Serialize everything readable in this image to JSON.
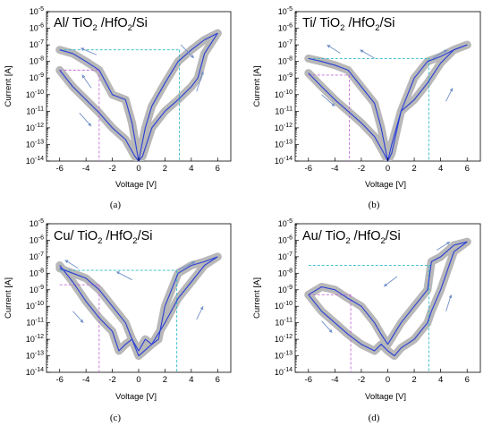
{
  "figure": {
    "title": ""
  },
  "chart_data": [
    {
      "type": "line",
      "panel_label": "(a)",
      "title": "Al/ TiO2 /HfO2/Si",
      "title_parts": [
        [
          "Al/ TiO",
          false
        ],
        [
          "2",
          true
        ],
        [
          " /HfO",
          false
        ],
        [
          "2",
          true
        ],
        [
          "/Si",
          false
        ]
      ],
      "xlabel": "Voltage [V]",
      "ylabel": "Current [A]",
      "xlim": [
        -7,
        7
      ],
      "ylim": [
        1e-14,
        1e-05
      ],
      "yscale": "log",
      "xticks": [
        -6,
        -4,
        -2,
        0,
        2,
        4,
        6
      ],
      "yticks": [
        -14,
        -13,
        -12,
        -11,
        -10,
        -9,
        -8,
        -7,
        -6,
        -5
      ],
      "colors": {
        "band": "#b8b8b8",
        "trace": "#2a3fd6",
        "h_guide": "#2bb8c8",
        "v_guide": "#c36bd8"
      },
      "series": [
        {
          "name": "",
          "x": [
            -6.0,
            -5.0,
            -4.0,
            -3.0,
            -2.0,
            -1.0,
            -0.3,
            0.0,
            0.3,
            1.0,
            2.0,
            3.0,
            4.0,
            4.5,
            5.0,
            6.0
          ],
          "y": [
            3e-09,
            3e-10,
            5e-11,
            8e-12,
            1e-12,
            2e-13,
            2e-14,
            1e-14,
            2e-14,
            1e-12,
            1e-11,
            5e-11,
            3e-10,
            1e-09,
            3e-08,
            5e-07
          ]
        },
        {
          "name": "",
          "x": [
            6.0,
            5.0,
            4.0,
            3.0,
            2.0,
            1.0,
            0.5,
            0.0,
            -0.5,
            -1.0,
            -2.0,
            -3.0,
            -4.0,
            -5.0,
            -6.0
          ],
          "y": [
            5e-07,
            2e-07,
            5e-08,
            1e-08,
            5e-10,
            2e-11,
            1e-12,
            1e-14,
            2e-12,
            5e-11,
            1e-10,
            3e-09,
            1e-08,
            3e-08,
            5e-08
          ]
        }
      ],
      "guides": {
        "h": [
          [
            -6,
            3.2,
            5e-08
          ],
          [
            -6,
            -3.0,
            3e-09
          ]
        ],
        "v": [
          [
            3.1,
            5e-08
          ],
          [
            -3.0,
            3e-09
          ]
        ]
      },
      "arrows": [
        [
          3.2,
          -7.0,
          4.2,
          -7.8
        ],
        [
          -3.2,
          -7.6,
          -4.4,
          -7.2
        ],
        [
          -3.6,
          -9.6,
          -4.3,
          -8.8
        ],
        [
          -4.5,
          -11.1,
          -3.6,
          -11.9
        ],
        [
          4.4,
          -9.8,
          4.9,
          -8.6
        ]
      ]
    },
    {
      "type": "line",
      "panel_label": "(b)",
      "title": "Ti/ TiO2 /HfO2/Si",
      "title_parts": [
        [
          "Ti/ TiO",
          false
        ],
        [
          "2",
          true
        ],
        [
          " /HfO",
          false
        ],
        [
          "2",
          true
        ],
        [
          "/Si",
          false
        ]
      ],
      "xlabel": "Voltage [V]",
      "ylabel": "Current [A]",
      "xlim": [
        -7,
        7
      ],
      "ylim": [
        1e-14,
        1e-05
      ],
      "yscale": "log",
      "xticks": [
        -6,
        -4,
        -2,
        0,
        2,
        4,
        6
      ],
      "yticks": [
        -14,
        -13,
        -12,
        -11,
        -10,
        -9,
        -8,
        -7,
        -6,
        -5
      ],
      "colors": {
        "band": "#b8b8b8",
        "trace": "#2a3fd6",
        "h_guide": "#2bb8c8",
        "v_guide": "#c36bd8"
      },
      "series": [
        {
          "name": "",
          "x": [
            -6.0,
            -5.0,
            -4.0,
            -3.0,
            -2.0,
            -1.0,
            -0.3,
            0.0,
            0.3,
            1.0,
            2.0,
            3.0,
            4.0,
            5.0,
            6.0
          ],
          "y": [
            2e-09,
            3e-10,
            5e-11,
            1e-11,
            2e-12,
            3e-13,
            3e-14,
            1e-14,
            3e-14,
            1e-11,
            5e-11,
            5e-10,
            8e-09,
            5e-08,
            1e-07
          ]
        },
        {
          "name": "",
          "x": [
            6.0,
            5.0,
            4.0,
            3.0,
            2.0,
            1.0,
            0.3,
            0.0,
            -0.5,
            -1.0,
            -2.0,
            -3.0,
            -4.0,
            -5.0,
            -6.0
          ],
          "y": [
            1e-07,
            5e-08,
            2e-08,
            1e-08,
            1e-09,
            1e-11,
            1e-13,
            1e-14,
            1e-12,
            3e-11,
            3e-10,
            3e-09,
            6e-09,
            1e-08,
            1.5e-08
          ]
        }
      ],
      "guides": {
        "h": [
          [
            -6,
            3.2,
            1.5e-08
          ],
          [
            -6,
            -2.9,
            1.5e-09
          ]
        ],
        "v": [
          [
            3.1,
            1.5e-08
          ],
          [
            -2.9,
            1.5e-09
          ]
        ]
      },
      "arrows": [
        [
          -3.6,
          -7.5,
          -4.6,
          -7.0
        ],
        [
          -1.0,
          -7.8,
          -2.1,
          -7.3
        ],
        [
          -5.0,
          -10.0,
          -4.0,
          -10.7
        ],
        [
          3.4,
          -7.8,
          4.5,
          -7.3
        ],
        [
          4.4,
          -10.4,
          4.9,
          -9.6
        ]
      ]
    },
    {
      "type": "line",
      "panel_label": "(c)",
      "title": "Cu/ TiO2 /HfO2/Si",
      "title_parts": [
        [
          "Cu/ TiO",
          false
        ],
        [
          "2",
          true
        ],
        [
          " /HfO",
          false
        ],
        [
          "2",
          true
        ],
        [
          "/Si",
          false
        ]
      ],
      "xlabel": "Voltage [V]",
      "ylabel": "Current [A]",
      "xlim": [
        -7,
        7
      ],
      "ylim": [
        1e-14,
        1e-05
      ],
      "yscale": "log",
      "xticks": [
        -6,
        -4,
        -2,
        0,
        2,
        4,
        6
      ],
      "yticks": [
        -14,
        -13,
        -12,
        -11,
        -10,
        -9,
        -8,
        -7,
        -6,
        -5
      ],
      "colors": {
        "band": "#b8b8b8",
        "trace": "#2a3fd6",
        "h_guide": "#2bb8c8",
        "v_guide": "#c36bd8"
      },
      "series": [
        {
          "name": "",
          "x": [
            -6.0,
            -5.0,
            -4.0,
            -3.0,
            -2.0,
            -1.5,
            -1.0,
            -0.5,
            0.0,
            0.5,
            1.0,
            2.0,
            3.0,
            4.0,
            5.0,
            6.0
          ],
          "y": [
            3e-08,
            3e-09,
            2e-10,
            2e-11,
            3e-12,
            2e-13,
            5e-13,
            1e-12,
            2e-13,
            1e-12,
            5e-13,
            1e-11,
            3e-10,
            3e-09,
            3e-08,
            1e-07
          ]
        },
        {
          "name": "",
          "x": [
            6.0,
            5.0,
            4.0,
            3.0,
            2.0,
            1.5,
            1.0,
            0.0,
            -0.5,
            -1.0,
            -2.0,
            -3.0,
            -4.0,
            -5.0,
            -6.0
          ],
          "y": [
            1e-07,
            5e-08,
            3e-08,
            1e-08,
            1e-10,
            1e-12,
            5e-13,
            1e-13,
            1e-12,
            1e-11,
            1e-10,
            1e-09,
            5e-09,
            1e-08,
            2e-08
          ]
        }
      ],
      "guides": {
        "h": [
          [
            -6,
            2.9,
            1.5e-08
          ],
          [
            -6,
            -3.0,
            2e-09
          ]
        ],
        "v": [
          [
            2.9,
            1.5e-08
          ],
          [
            -3.0,
            2e-09
          ]
        ]
      },
      "arrows": [
        [
          -4.6,
          -7.7,
          -5.6,
          -7.2
        ],
        [
          -0.5,
          -8.4,
          -1.7,
          -7.9
        ],
        [
          -5.0,
          -10.3,
          -4.2,
          -11.0
        ],
        [
          3.0,
          -7.8,
          4.3,
          -7.3
        ],
        [
          4.4,
          -10.8,
          4.9,
          -10.0
        ]
      ]
    },
    {
      "type": "line",
      "panel_label": "(d)",
      "title": "Au/ TiO2 /HfO2/Si",
      "title_parts": [
        [
          "Au/ TiO",
          false
        ],
        [
          "2",
          true
        ],
        [
          " /HfO",
          false
        ],
        [
          "2",
          true
        ],
        [
          "/Si",
          false
        ]
      ],
      "xlabel": "Voltage [V]",
      "ylabel": "Current [A]",
      "xlim": [
        -7,
        7
      ],
      "ylim": [
        1e-14,
        1e-05
      ],
      "yscale": "log",
      "xticks": [
        -6,
        -4,
        -2,
        0,
        2,
        4,
        6
      ],
      "yticks": [
        -14,
        -13,
        -12,
        -11,
        -10,
        -9,
        -8,
        -7,
        -6,
        -5
      ],
      "colors": {
        "band": "#b8b8b8",
        "trace": "#2a3fd6",
        "h_guide": "#2bb8c8",
        "v_guide": "#c36bd8"
      },
      "series": [
        {
          "name": "",
          "x": [
            -6.0,
            -5.0,
            -4.0,
            -3.0,
            -2.0,
            -1.0,
            -0.5,
            0.0,
            0.5,
            1.0,
            2.0,
            3.0,
            3.3,
            4.0,
            5.0,
            6.0
          ],
          "y": [
            5e-10,
            5e-11,
            1e-11,
            2e-12,
            5e-13,
            2e-13,
            5e-13,
            2e-13,
            1e-13,
            3e-13,
            1e-12,
            1e-11,
            5e-11,
            1e-09,
            2e-07,
            8e-07
          ]
        },
        {
          "name": "",
          "x": [
            6.0,
            5.0,
            4.0,
            3.3,
            3.0,
            2.0,
            1.0,
            0.0,
            -0.5,
            -1.0,
            -2.0,
            -3.0,
            -4.0,
            -5.0,
            -6.0
          ],
          "y": [
            8e-07,
            5e-07,
            1e-07,
            5e-08,
            1e-09,
            1e-10,
            1e-11,
            5e-13,
            2e-12,
            1e-11,
            1e-10,
            3e-10,
            1e-09,
            1.5e-09,
            5e-10
          ]
        }
      ],
      "guides": {
        "h": [
          [
            -6,
            3.3,
            3e-08
          ],
          [
            -6,
            -2.8,
            5e-10
          ]
        ],
        "v": [
          [
            3.1,
            3e-08
          ],
          [
            -2.8,
            5e-10
          ]
        ]
      },
      "arrows": [
        [
          0.7,
          -8.2,
          -0.3,
          -8.8
        ],
        [
          3.7,
          -6.6,
          4.7,
          -6.1
        ],
        [
          -5.0,
          -10.9,
          -4.2,
          -11.6
        ],
        [
          4.4,
          -10.3,
          4.8,
          -9.3
        ]
      ]
    }
  ]
}
